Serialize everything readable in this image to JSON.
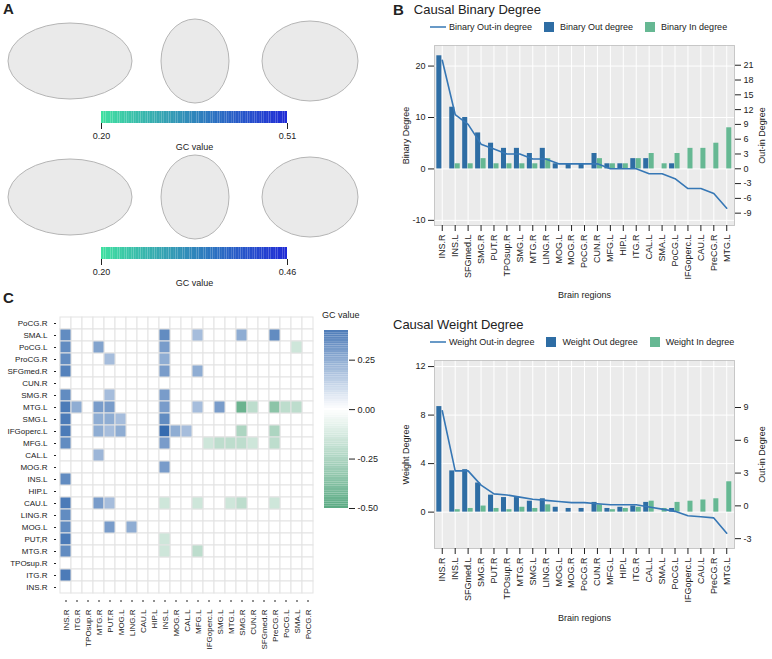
{
  "chart_data": [
    {
      "panel": "A",
      "type": "brain_network",
      "colorbars": [
        {
          "label": "GC value",
          "clim": [
            0.2,
            0.51
          ],
          "ticks": [
            {
              "value": 0.2,
              "label": "0.20"
            },
            {
              "value": 0.51,
              "label": "0.51"
            }
          ],
          "colors": [
            "#3fe0a0",
            "#1f2ad6"
          ]
        },
        {
          "label": "GC value",
          "clim": [
            0.2,
            0.46
          ],
          "ticks": [
            {
              "value": 0.2,
              "label": "0.20"
            },
            {
              "value": 0.46,
              "label": "0.46"
            }
          ],
          "colors": [
            "#3fe0a0",
            "#1f2ad6"
          ]
        }
      ]
    },
    {
      "panel": "B",
      "type": "bar",
      "title": "Causal Binary Degree",
      "xlabel": "Brain regions",
      "ylabel": "Binary Degree",
      "y2label": "Out-in Degree",
      "categories": [
        "INS.R",
        "INS.L",
        "SFGmed.L",
        "SMG.R",
        "PUT.R",
        "TPOsup.R",
        "SMG.L",
        "MTG.R",
        "LING.R",
        "MOG.L",
        "MOG.R",
        "PoCG.R",
        "CUN.R",
        "MFG.L",
        "HIP.L",
        "ITG.R",
        "CAL.L",
        "SMA.L",
        "PoCG.L",
        "IFGoperc.L",
        "CAU.L",
        "PreCG.R",
        "MTG.L"
      ],
      "ylim": [
        -11,
        24
      ],
      "yticks": [
        -10,
        0,
        10,
        20
      ],
      "y2lim": [
        -11.5,
        25
      ],
      "y2ticks": [
        -9,
        -6,
        -3,
        0,
        3,
        6,
        9,
        12,
        15,
        18,
        21
      ],
      "grid": true,
      "legend": "top",
      "series": [
        {
          "name": "Binary Out-in degree",
          "type": "line",
          "axis": "y2",
          "color": "#3677b5",
          "values": [
            22,
            11,
            9,
            5,
            4,
            3,
            3,
            2,
            2,
            1,
            1,
            1,
            1,
            0,
            0,
            0,
            -1,
            -1,
            -2,
            -4,
            -4,
            -5,
            -8
          ]
        },
        {
          "name": "Binary Out degree",
          "type": "bar",
          "color": "#2e6da4",
          "values": [
            22,
            12,
            10,
            7,
            5,
            4,
            4,
            3,
            4,
            1,
            1,
            1,
            3,
            1,
            1,
            2,
            2,
            0,
            1,
            0,
            0,
            0,
            0
          ]
        },
        {
          "name": "Binary In degree",
          "type": "bar",
          "color": "#66b893",
          "values": [
            0,
            1,
            1,
            2,
            1,
            1,
            1,
            1,
            2,
            0,
            0,
            0,
            2,
            1,
            1,
            2,
            3,
            1,
            3,
            4,
            4,
            5,
            8
          ]
        }
      ]
    },
    {
      "type": "bar",
      "title": "Causal Weight Degree",
      "xlabel": "Brain regions",
      "ylabel": "Weight Degree",
      "y2label": "Out-in Degree",
      "categories": [
        "INS.R",
        "INS.L",
        "SFGmed.L",
        "SMG.R",
        "PUT.R",
        "TPOsup.R",
        "MTG.R",
        "SMG.L",
        "LING.R",
        "MOG.L",
        "MOG.R",
        "PoCG.R",
        "CUN.R",
        "MFG.L",
        "HIP.L",
        "ITG.R",
        "CAL.L",
        "SMA.L",
        "PoCG.L",
        "IFGoperc.L",
        "CAU.L",
        "PreCG.R",
        "MTG.L"
      ],
      "ylim": [
        -3,
        12.5
      ],
      "yticks": [
        0,
        4,
        8,
        12
      ],
      "y2lim": [
        -3.9,
        13.3
      ],
      "y2ticks": [
        -3,
        0,
        3,
        6,
        9
      ],
      "grid": true,
      "legend": "top",
      "series": [
        {
          "name": "Weight Out-in degree",
          "type": "line",
          "axis": "y2",
          "color": "#3677b5",
          "values": [
            8.7,
            3.2,
            3.2,
            1.9,
            1.1,
            1,
            0.8,
            0.6,
            0.5,
            0.4,
            0.3,
            0.3,
            0.2,
            0.1,
            0.1,
            0.1,
            -0.1,
            -0.3,
            -0.5,
            -0.9,
            -1,
            -1.1,
            -2.5
          ]
        },
        {
          "name": "Weight Out degree",
          "type": "bar",
          "color": "#2e6da4",
          "values": [
            8.7,
            3.4,
            3.5,
            2.4,
            1.4,
            1.2,
            1.2,
            0.9,
            1.1,
            0.4,
            0.3,
            0.3,
            0.8,
            0.3,
            0.4,
            0.5,
            0.8,
            0,
            0.3,
            0,
            0,
            0,
            0
          ]
        },
        {
          "name": "Weight In degree",
          "type": "bar",
          "color": "#66b893",
          "values": [
            0,
            0.2,
            0.3,
            0.5,
            0.3,
            0.2,
            0.4,
            0.3,
            0.6,
            0,
            0,
            0,
            0.6,
            0.2,
            0.3,
            0.4,
            0.9,
            0.3,
            0.8,
            0.9,
            1,
            1.1,
            2.5
          ]
        }
      ]
    },
    {
      "panel": "C",
      "type": "heatmap",
      "rows": [
        "PoCG.R",
        "SMA.L",
        "PoCG.L",
        "ProCG.R",
        "SFGmed.R",
        "CUN.R",
        "SMG.R",
        "MTG.L",
        "SMG.L",
        "IFGoperc.L",
        "MFG.L",
        "CAL.L",
        "MOG.R",
        "INS.L",
        "HIP.L",
        "CAU.L",
        "LING.R",
        "MOG.L",
        "PUT,R",
        "MTG.R",
        "TPOsup.R",
        "ITG.R",
        "INS.R"
      ],
      "columns": [
        "INS.R",
        "ITG.R",
        "TPOsup.R",
        "MTG.R",
        "PUT.R",
        "MOG.L",
        "LING.R",
        "CAU.L",
        "HIP.L",
        "INS.L",
        "MOG.R",
        "CAL.L",
        "MFG.L",
        "IFGoperc.L",
        "SMG.L",
        "MTG.L",
        "SMG.R",
        "CUN.R",
        "SFGmed.R",
        "PreCG.R",
        "PoCG.L",
        "SMA.L",
        "PoCG.R"
      ],
      "cells": [
        {
          "row": "SMA.L",
          "col": "INS.R",
          "value": 0.35
        },
        {
          "row": "PoCG.L",
          "col": "INS.R",
          "value": 0.35
        },
        {
          "row": "ProCG.R",
          "col": "INS.R",
          "value": 0.35
        },
        {
          "row": "SFGmed.R",
          "col": "INS.R",
          "value": 0.38
        },
        {
          "row": "SMG.R",
          "col": "INS.R",
          "value": 0.35
        },
        {
          "row": "MTG.L",
          "col": "INS.R",
          "value": 0.4
        },
        {
          "row": "SMG.L",
          "col": "INS.R",
          "value": 0.4
        },
        {
          "row": "IFGoperc.L",
          "col": "INS.R",
          "value": 0.4
        },
        {
          "row": "MFG.L",
          "col": "INS.R",
          "value": 0.35
        },
        {
          "row": "INS.L",
          "col": "INS.R",
          "value": 0.35
        },
        {
          "row": "CAU.L",
          "col": "INS.R",
          "value": 0.4
        },
        {
          "row": "LING.R",
          "col": "INS.R",
          "value": 0.35
        },
        {
          "row": "MOG.L",
          "col": "INS.R",
          "value": 0.35
        },
        {
          "row": "PUT,R",
          "col": "INS.R",
          "value": 0.4
        },
        {
          "row": "MTG.R",
          "col": "INS.R",
          "value": 0.35
        },
        {
          "row": "ITG.R",
          "col": "INS.R",
          "value": 0.4
        },
        {
          "row": "MTG.L",
          "col": "ITG.R",
          "value": 0.25
        },
        {
          "row": "PoCG.L",
          "col": "MTG.R",
          "value": 0.28
        },
        {
          "row": "MTG.L",
          "col": "MTG.R",
          "value": 0.3
        },
        {
          "row": "SMG.L",
          "col": "MTG.R",
          "value": 0.25
        },
        {
          "row": "IFGoperc.L",
          "col": "MTG.R",
          "value": 0.25
        },
        {
          "row": "CAL.L",
          "col": "MTG.R",
          "value": 0.22
        },
        {
          "row": "CAU.L",
          "col": "MTG.R",
          "value": 0.3
        },
        {
          "row": "ProCG.R",
          "col": "PUT.R",
          "value": 0.2
        },
        {
          "row": "SMG.R",
          "col": "PUT.R",
          "value": 0.2
        },
        {
          "row": "MTG.L",
          "col": "PUT.R",
          "value": 0.3
        },
        {
          "row": "SMG.L",
          "col": "PUT.R",
          "value": 0.25
        },
        {
          "row": "IFGoperc.L",
          "col": "PUT.R",
          "value": 0.2
        },
        {
          "row": "CAU.L",
          "col": "PUT.R",
          "value": 0.2
        },
        {
          "row": "MOG.L",
          "col": "PUT.R",
          "value": 0.3
        },
        {
          "row": "SMG.L",
          "col": "MOG.L",
          "value": 0.2
        },
        {
          "row": "IFGoperc.L",
          "col": "MOG.L",
          "value": 0.25
        },
        {
          "row": "MOG.L",
          "col": "LING.R",
          "value": 0.25
        },
        {
          "row": "SMA.L",
          "col": "INS.L",
          "value": 0.35
        },
        {
          "row": "PoCG.L",
          "col": "INS.L",
          "value": 0.3
        },
        {
          "row": "ProCG.R",
          "col": "INS.L",
          "value": 0.25
        },
        {
          "row": "SFGmed.R",
          "col": "INS.L",
          "value": 0.3
        },
        {
          "row": "SMG.R",
          "col": "INS.L",
          "value": 0.3
        },
        {
          "row": "MTG.L",
          "col": "INS.L",
          "value": 0.3
        },
        {
          "row": "SMG.L",
          "col": "INS.L",
          "value": 0.35
        },
        {
          "row": "IFGoperc.L",
          "col": "INS.L",
          "value": 0.45
        },
        {
          "row": "MFG.L",
          "col": "INS.L",
          "value": 0.3
        },
        {
          "row": "MOG.R",
          "col": "INS.L",
          "value": 0.3
        },
        {
          "row": "CAU.L",
          "col": "INS.L",
          "value": -0.15
        },
        {
          "row": "PUT,R",
          "col": "INS.L",
          "value": -0.15
        },
        {
          "row": "MTG.R",
          "col": "INS.L",
          "value": -0.15
        },
        {
          "row": "IFGoperc.L",
          "col": "MOG.R",
          "value": 0.25
        },
        {
          "row": "IFGoperc.L",
          "col": "CAL.L",
          "value": 0.2
        },
        {
          "row": "SMA.L",
          "col": "MFG.L",
          "value": 0.2
        },
        {
          "row": "SFGmed.R",
          "col": "MFG.L",
          "value": 0.25
        },
        {
          "row": "MTG.L",
          "col": "MFG.L",
          "value": 0.2
        },
        {
          "row": "CAU.L",
          "col": "MFG.L",
          "value": -0.15
        },
        {
          "row": "MTG.R",
          "col": "MFG.L",
          "value": -0.2
        },
        {
          "row": "MFG.L",
          "col": "IFGoperc.L",
          "value": -0.15
        },
        {
          "row": "MTG.L",
          "col": "SMG.L",
          "value": 0.3
        },
        {
          "row": "MFG.L",
          "col": "SMG.L",
          "value": -0.2
        },
        {
          "row": "MFG.L",
          "col": "MTG.L",
          "value": -0.2
        },
        {
          "row": "CAU.L",
          "col": "MTG.L",
          "value": -0.15
        },
        {
          "row": "SMA.L",
          "col": "SMG.R",
          "value": 0.25
        },
        {
          "row": "MTG.L",
          "col": "SMG.R",
          "value": -0.45
        },
        {
          "row": "IFGoperc.L",
          "col": "SMG.R",
          "value": -0.25
        },
        {
          "row": "MFG.L",
          "col": "SMG.R",
          "value": -0.2
        },
        {
          "row": "CAU.L",
          "col": "SMG.R",
          "value": -0.2
        },
        {
          "row": "MTG.L",
          "col": "CUN.R",
          "value": -0.2
        },
        {
          "row": "MFG.L",
          "col": "CUN.R",
          "value": -0.15
        },
        {
          "row": "SMA.L",
          "col": "PreCG.R",
          "value": 0.35
        },
        {
          "row": "MTG.L",
          "col": "PreCG.R",
          "value": -0.35
        },
        {
          "row": "IFGoperc.L",
          "col": "PreCG.R",
          "value": -0.25
        },
        {
          "row": "MFG.L",
          "col": "PreCG.R",
          "value": -0.2
        },
        {
          "row": "CAU.L",
          "col": "PreCG.R",
          "value": -0.15
        },
        {
          "row": "MTG.L",
          "col": "PoCG.L",
          "value": -0.2
        },
        {
          "row": "PoCG.L",
          "col": "SMA.L",
          "value": -0.15
        },
        {
          "row": "MTG.L",
          "col": "SMA.L",
          "value": -0.2
        }
      ],
      "colorbar": {
        "label": "GC value",
        "clim": [
          -0.5,
          0.4
        ],
        "ticks": [
          {
            "value": -0.5,
            "label": "-0.50"
          },
          {
            "value": -0.25,
            "label": "-0.25"
          },
          {
            "value": 0,
            "label": "0.00"
          },
          {
            "value": 0.25,
            "label": "0.25"
          }
        ],
        "colors": [
          "#5aaa83",
          "#ffffff",
          "#4c7bb8"
        ]
      }
    }
  ]
}
